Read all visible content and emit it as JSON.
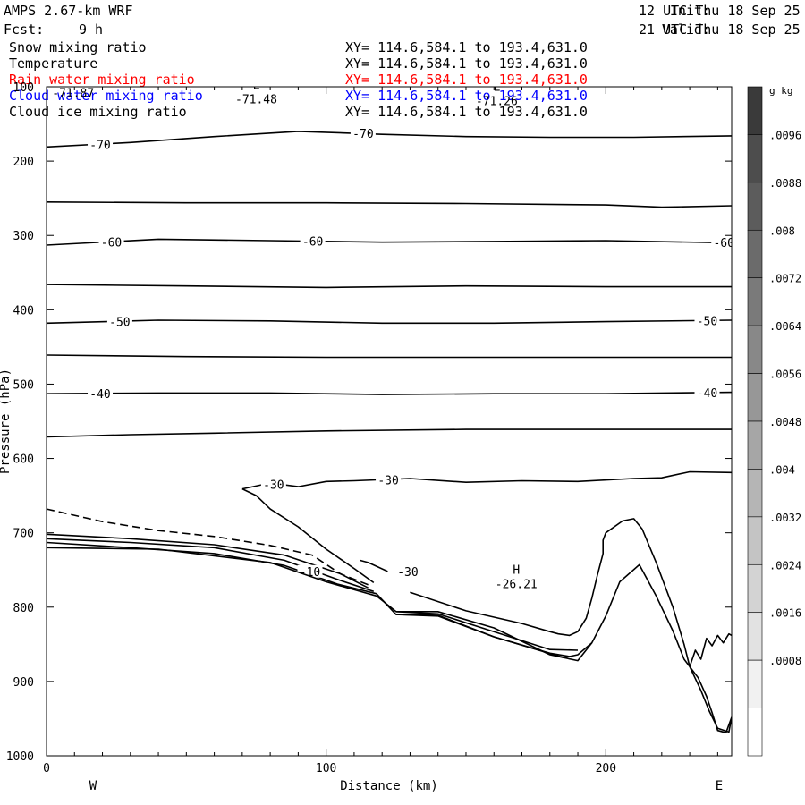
{
  "header": {
    "model": "AMPS 2.67-km WRF",
    "init_label": "Init:",
    "init_time": "12 UTC Thu 18 Sep 25",
    "fcst_label": "Fcst:",
    "fcst_value": "9 h",
    "valid_label": "Valid:",
    "valid_time": "21 UTC Thu 18 Sep 25"
  },
  "legend": [
    {
      "label": "Snow mixing ratio",
      "xy": "XY= 114.6,584.1 to 193.4,631.0",
      "color": "#000000"
    },
    {
      "label": "Temperature",
      "xy": "XY= 114.6,584.1 to 193.4,631.0",
      "color": "#000000"
    },
    {
      "label": "Rain water mixing ratio",
      "xy": "XY= 114.6,584.1 to 193.4,631.0",
      "color": "#ff0000"
    },
    {
      "label": "Cloud water mixing ratio",
      "xy": "XY= 114.6,584.1 to 193.4,631.0",
      "color": "#0000ff"
    },
    {
      "label": "Cloud ice mixing ratio",
      "xy": "XY= 114.6,584.1 to 193.4,631.0",
      "color": "#000000"
    }
  ],
  "chart_data": {
    "type": "line",
    "xlabel": "Distance (km)",
    "ylabel": "Pressure (hPa)",
    "xlim": [
      0,
      245
    ],
    "ylim": [
      1000,
      100
    ],
    "x_ticks": [
      "0",
      "100",
      "200"
    ],
    "y_ticks": [
      "100",
      "200",
      "300",
      "400",
      "500",
      "600",
      "700",
      "800",
      "900",
      "1000"
    ],
    "y_scale": "linear, inverted",
    "direction_labels": {
      "left": "W",
      "right": "E"
    },
    "markers": [
      {
        "symbol": "L",
        "value": "-71.48",
        "x": 75,
        "p": 108
      },
      {
        "symbol": "L",
        "value": "-71.26",
        "x": 161,
        "p": 110
      },
      {
        "symbol": "H",
        "value": "-26.21",
        "x": 168,
        "p": 760
      }
    ],
    "partial_label": "-71.87",
    "series": [
      {
        "level": "-70",
        "x": [
          0,
          30,
          60,
          90,
          120,
          150,
          180,
          210,
          245
        ],
        "y": [
          181,
          175,
          167,
          160,
          164,
          167,
          168,
          168,
          166
        ],
        "labels": [
          {
            "text": "-70",
            "x": 16
          },
          {
            "text": "-70",
            "x": 110
          }
        ]
      },
      {
        "level": "-65",
        "x": [
          0,
          50,
          100,
          150,
          200,
          220,
          245
        ],
        "y": [
          255,
          256,
          256,
          257,
          259,
          262,
          260
        ],
        "labels": []
      },
      {
        "level": "-60",
        "x": [
          0,
          40,
          80,
          120,
          160,
          200,
          245
        ],
        "y": [
          313,
          305,
          307,
          309,
          308,
          307,
          310
        ],
        "labels": [
          {
            "text": "-60",
            "x": 20
          },
          {
            "text": "-60",
            "x": 92
          },
          {
            "text": "-60",
            "x": 239
          }
        ]
      },
      {
        "level": "-55",
        "x": [
          0,
          50,
          100,
          150,
          200,
          245
        ],
        "y": [
          366,
          368,
          370,
          368,
          369,
          369
        ],
        "labels": []
      },
      {
        "level": "-50",
        "x": [
          0,
          40,
          80,
          120,
          160,
          200,
          245
        ],
        "y": [
          418,
          414,
          415,
          418,
          418,
          416,
          414
        ],
        "labels": [
          {
            "text": "-50",
            "x": 23
          },
          {
            "text": "-50",
            "x": 233
          }
        ]
      },
      {
        "level": "-45",
        "x": [
          0,
          50,
          100,
          150,
          200,
          245
        ],
        "y": [
          461,
          463,
          464,
          464,
          464,
          464
        ],
        "labels": []
      },
      {
        "level": "-40",
        "x": [
          0,
          40,
          80,
          120,
          160,
          200,
          245
        ],
        "y": [
          513,
          512,
          512,
          514,
          513,
          513,
          511
        ],
        "labels": [
          {
            "text": "-40",
            "x": 16
          },
          {
            "text": "-40",
            "x": 233
          }
        ]
      },
      {
        "level": "-35",
        "x": [
          0,
          30,
          60,
          100,
          150,
          200,
          245
        ],
        "y": [
          571,
          568,
          566,
          563,
          561,
          561,
          561
        ],
        "labels": []
      },
      {
        "level": "-30",
        "x": [
          70,
          80,
          90,
          100,
          110,
          130,
          150,
          170,
          190,
          210,
          220,
          230,
          245
        ],
        "y": [
          641,
          633,
          638,
          631,
          630,
          627,
          632,
          630,
          631,
          627,
          626,
          618,
          619
        ],
        "labels": [
          {
            "text": "-30",
            "x": 78
          },
          {
            "text": "-30",
            "x": 119
          }
        ]
      },
      {
        "level": "-30",
        "x": [
          70,
          75,
          80,
          90,
          100,
          110,
          117
        ],
        "y": [
          641,
          650,
          668,
          692,
          722,
          748,
          767
        ],
        "labels": []
      },
      {
        "level": "-30",
        "x": [
          112,
          115,
          118,
          122
        ],
        "y": [
          737,
          740,
          745,
          752
        ],
        "labels": [
          {
            "text": "-30",
            "x": 126
          }
        ]
      },
      {
        "level": "-30",
        "x": [
          130,
          150,
          170,
          180,
          183,
          187,
          190,
          193,
          195,
          197,
          199,
          199,
          200,
          206,
          210,
          213,
          218,
          224,
          228,
          230,
          234,
          237,
          240,
          244,
          245
        ],
        "y": [
          780,
          805,
          822,
          833,
          836,
          838,
          833,
          815,
          788,
          757,
          728,
          710,
          700,
          684,
          681,
          695,
          740,
          800,
          850,
          880,
          912,
          940,
          963,
          968,
          948
        ],
        "labels": []
      },
      {
        "level": "-25",
        "x": [
          0,
          20,
          40,
          60,
          80,
          95,
          105,
          115
        ],
        "y": [
          668,
          685,
          697,
          705,
          717,
          730,
          755,
          770
        ],
        "labels": [],
        "dash": true
      },
      {
        "level": "-20",
        "x": [
          0,
          30,
          60,
          85,
          105,
          115
        ],
        "y": [
          702,
          708,
          716,
          730,
          755,
          774
        ],
        "labels": []
      },
      {
        "level": "-15",
        "x": [
          0,
          30,
          60,
          85,
          105,
          117
        ],
        "y": [
          708,
          713,
          720,
          737,
          764,
          779
        ],
        "labels": []
      },
      {
        "level": "-10",
        "x": [
          0,
          30,
          60,
          85,
          104,
          118
        ],
        "y": [
          713,
          720,
          728,
          744,
          769,
          782
        ],
        "labels": [
          {
            "text": "-10",
            "x": 91
          }
        ]
      },
      {
        "level": "-5",
        "x": [
          0,
          40,
          80,
          100,
          118,
          125,
          140,
          160,
          180,
          190,
          195,
          200,
          205,
          212,
          218,
          224,
          228,
          230,
          233,
          236,
          238,
          240,
          243,
          245
        ],
        "y": [
          720,
          722,
          740,
          766,
          785,
          806,
          806,
          828,
          864,
          872,
          848,
          812,
          766,
          743,
          785,
          832,
          870,
          880,
          895,
          920,
          942,
          966,
          969,
          948
        ],
        "labels": []
      },
      {
        "level": "0",
        "x": [
          118,
          125,
          140,
          160,
          185,
          190,
          195
        ],
        "y": [
          782,
          810,
          811,
          840,
          868,
          864,
          848
        ],
        "labels": []
      },
      {
        "level": "-5b",
        "x": [
          125,
          140,
          160,
          180,
          190
        ],
        "y": [
          806,
          809,
          833,
          857,
          858
        ],
        "labels": []
      },
      {
        "level": "-10b",
        "x": [
          125,
          140,
          160,
          180,
          188
        ],
        "y": [
          810,
          812,
          840,
          862,
          867
        ],
        "labels": []
      },
      {
        "level": "terrain",
        "x": [
          230,
          232,
          234,
          236,
          238,
          240,
          242,
          244,
          245
        ],
        "y": [
          880,
          858,
          870,
          842,
          852,
          838,
          848,
          836,
          838
        ],
        "labels": []
      }
    ]
  },
  "colorbar": {
    "unit": "g kg",
    "unit_exponent": "-1",
    "ticks": [
      ".0096",
      ".0088",
      ".008",
      ".0072",
      ".0064",
      ".0056",
      ".0048",
      ".004",
      ".0032",
      ".0024",
      ".0016",
      ".0008"
    ],
    "colors": [
      "#3a3a3a",
      "#4d4d4d",
      "#5c5c5c",
      "#6b6b6b",
      "#7a7a7a",
      "#888888",
      "#979797",
      "#a6a6a6",
      "#b5b5b5",
      "#c4c4c4",
      "#d3d3d3",
      "#e2e2e2",
      "#f1f1f1",
      "#ffffff"
    ]
  }
}
